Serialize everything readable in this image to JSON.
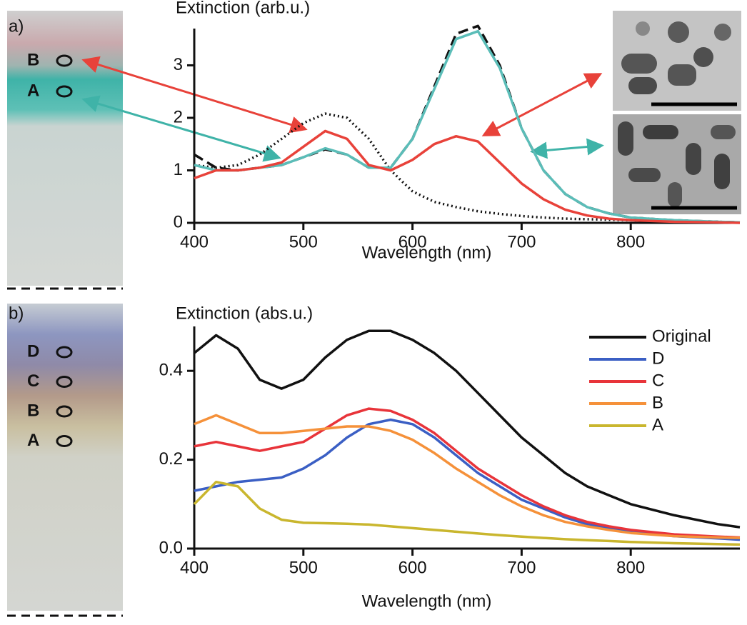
{
  "chart_data": [
    {
      "type": "line",
      "panel_label": "a)",
      "strip_labels": [
        "B",
        "A"
      ],
      "y_label": "Extinction (arb.u.)",
      "x_label": "Wavelength (nm)",
      "x": [
        400,
        420,
        440,
        460,
        480,
        500,
        520,
        540,
        560,
        580,
        600,
        620,
        640,
        660,
        680,
        700,
        720,
        740,
        760,
        780,
        800,
        840,
        880,
        900
      ],
      "series": [
        {
          "color": "#111111",
          "dash": "dotted",
          "values": [
            1.1,
            1.05,
            1.1,
            1.3,
            1.6,
            1.9,
            2.08,
            2.0,
            1.6,
            1.0,
            0.6,
            0.4,
            0.3,
            0.22,
            0.17,
            0.13,
            0.1,
            0.08,
            0.07,
            0.06,
            0.05,
            0.03,
            0.02,
            0.01
          ]
        },
        {
          "color": "#111111",
          "dash": "dashed",
          "values": [
            1.3,
            1.05,
            1.0,
            1.05,
            1.1,
            1.25,
            1.4,
            1.3,
            1.05,
            1.05,
            1.6,
            2.6,
            3.6,
            3.75,
            3.0,
            1.8,
            1.0,
            0.55,
            0.3,
            0.18,
            0.1,
            0.05,
            0.02,
            0.01
          ]
        },
        {
          "color": "#5bbdb8",
          "dash": "solid",
          "values": [
            1.1,
            1.0,
            1.0,
            1.05,
            1.1,
            1.25,
            1.42,
            1.3,
            1.05,
            1.05,
            1.6,
            2.55,
            3.5,
            3.65,
            2.95,
            1.8,
            1.0,
            0.55,
            0.3,
            0.18,
            0.1,
            0.05,
            0.02,
            0.01
          ]
        },
        {
          "color": "#e8423a",
          "dash": "solid",
          "values": [
            0.85,
            1.0,
            1.0,
            1.05,
            1.15,
            1.45,
            1.75,
            1.6,
            1.1,
            1.0,
            1.2,
            1.5,
            1.65,
            1.55,
            1.15,
            0.75,
            0.45,
            0.25,
            0.14,
            0.08,
            0.05,
            0.02,
            0.01,
            0.0
          ]
        }
      ],
      "xlim": [
        400,
        900
      ],
      "xticks": [
        400,
        500,
        600,
        700,
        800
      ],
      "ylim": [
        0,
        3.7
      ],
      "yticks": [
        0,
        1,
        2,
        3
      ]
    },
    {
      "type": "line",
      "panel_label": "b)",
      "strip_labels": [
        "D",
        "C",
        "B",
        "A"
      ],
      "y_label": "Extinction (abs.u.)",
      "x_label": "Wavelength (nm)",
      "x": [
        400,
        420,
        440,
        460,
        480,
        500,
        520,
        540,
        560,
        580,
        600,
        620,
        640,
        660,
        680,
        700,
        720,
        740,
        760,
        780,
        800,
        840,
        880,
        900
      ],
      "series": [
        {
          "name": "Original",
          "color": "#111111",
          "values": [
            0.44,
            0.48,
            0.45,
            0.38,
            0.36,
            0.38,
            0.43,
            0.47,
            0.49,
            0.49,
            0.47,
            0.44,
            0.4,
            0.35,
            0.3,
            0.25,
            0.21,
            0.17,
            0.14,
            0.12,
            0.1,
            0.075,
            0.055,
            0.048
          ]
        },
        {
          "name": "D",
          "color": "#3b5fc4",
          "values": [
            0.13,
            0.14,
            0.15,
            0.155,
            0.16,
            0.18,
            0.21,
            0.25,
            0.28,
            0.29,
            0.28,
            0.25,
            0.21,
            0.17,
            0.14,
            0.11,
            0.09,
            0.07,
            0.055,
            0.045,
            0.038,
            0.028,
            0.023,
            0.02
          ]
        },
        {
          "name": "C",
          "color": "#e8343a",
          "values": [
            0.23,
            0.24,
            0.23,
            0.22,
            0.23,
            0.24,
            0.27,
            0.3,
            0.315,
            0.31,
            0.29,
            0.26,
            0.22,
            0.18,
            0.15,
            0.12,
            0.095,
            0.075,
            0.06,
            0.05,
            0.042,
            0.032,
            0.027,
            0.025
          ]
        },
        {
          "name": "B",
          "color": "#f5913a",
          "values": [
            0.28,
            0.3,
            0.28,
            0.26,
            0.26,
            0.265,
            0.27,
            0.275,
            0.275,
            0.265,
            0.245,
            0.215,
            0.18,
            0.15,
            0.12,
            0.095,
            0.075,
            0.06,
            0.05,
            0.042,
            0.035,
            0.028,
            0.025,
            0.024
          ]
        },
        {
          "name": "A",
          "color": "#c9b62e",
          "values": [
            0.1,
            0.15,
            0.14,
            0.09,
            0.065,
            0.058,
            0.057,
            0.056,
            0.054,
            0.05,
            0.046,
            0.042,
            0.038,
            0.034,
            0.03,
            0.027,
            0.024,
            0.021,
            0.019,
            0.017,
            0.015,
            0.012,
            0.01,
            0.009
          ]
        }
      ],
      "xlim": [
        400,
        900
      ],
      "xticks": [
        400,
        500,
        600,
        700,
        800
      ],
      "ylim": [
        0,
        0.5
      ],
      "yticks": [
        {
          "value": 0,
          "label": "0.0"
        },
        0.2,
        0.4
      ],
      "legend": "top-right"
    }
  ]
}
